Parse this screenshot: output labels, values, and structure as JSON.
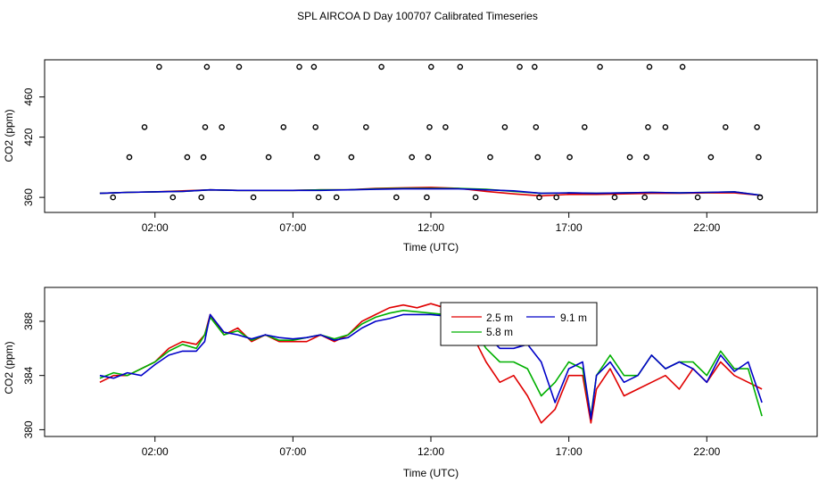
{
  "title": "SPL AIRCOA D  Day 100707  Calibrated Timeseries",
  "chart_data": [
    {
      "type": "scatter+line",
      "xlabel": "Time (UTC)",
      "ylabel": "CO2 (ppm)",
      "x_tick_labels": [
        "02:00",
        "07:00",
        "12:00",
        "17:00",
        "22:00"
      ],
      "x_ticks_hours": [
        2,
        7,
        12,
        17,
        22
      ],
      "x_range_hours": [
        -2.0,
        26.0
      ],
      "y_ticks": [
        360,
        420,
        460
      ],
      "y_tick_labels": [
        "360",
        "420",
        "460"
      ],
      "y_range": [
        345,
        497
      ],
      "calibration_points": [
        {
          "x": 0.48,
          "y": 360
        },
        {
          "x": 1.07,
          "y": 400
        },
        {
          "x": 1.62,
          "y": 430
        },
        {
          "x": 2.15,
          "y": 490
        },
        {
          "x": 2.65,
          "y": 360
        },
        {
          "x": 3.17,
          "y": 400
        },
        {
          "x": 3.68,
          "y": 360
        },
        {
          "x": 3.76,
          "y": 400
        },
        {
          "x": 3.82,
          "y": 430
        },
        {
          "x": 3.88,
          "y": 490
        },
        {
          "x": 4.42,
          "y": 430
        },
        {
          "x": 5.05,
          "y": 490
        },
        {
          "x": 5.57,
          "y": 360
        },
        {
          "x": 6.12,
          "y": 400
        },
        {
          "x": 6.66,
          "y": 430
        },
        {
          "x": 7.23,
          "y": 490
        },
        {
          "x": 7.76,
          "y": 490
        },
        {
          "x": 7.82,
          "y": 430
        },
        {
          "x": 7.87,
          "y": 400
        },
        {
          "x": 7.93,
          "y": 360
        },
        {
          "x": 8.58,
          "y": 360
        },
        {
          "x": 9.12,
          "y": 400
        },
        {
          "x": 9.65,
          "y": 430
        },
        {
          "x": 10.21,
          "y": 490
        },
        {
          "x": 10.75,
          "y": 360
        },
        {
          "x": 11.31,
          "y": 400
        },
        {
          "x": 11.85,
          "y": 360
        },
        {
          "x": 11.9,
          "y": 400
        },
        {
          "x": 11.95,
          "y": 430
        },
        {
          "x": 12.01,
          "y": 490
        },
        {
          "x": 12.53,
          "y": 430
        },
        {
          "x": 13.06,
          "y": 490
        },
        {
          "x": 13.62,
          "y": 360
        },
        {
          "x": 14.15,
          "y": 400
        },
        {
          "x": 14.68,
          "y": 430
        },
        {
          "x": 15.22,
          "y": 490
        },
        {
          "x": 15.76,
          "y": 490
        },
        {
          "x": 15.81,
          "y": 430
        },
        {
          "x": 15.87,
          "y": 400
        },
        {
          "x": 15.93,
          "y": 360
        },
        {
          "x": 16.55,
          "y": 360
        },
        {
          "x": 17.03,
          "y": 400
        },
        {
          "x": 17.57,
          "y": 430
        },
        {
          "x": 18.13,
          "y": 490
        },
        {
          "x": 18.66,
          "y": 360
        },
        {
          "x": 19.21,
          "y": 400
        },
        {
          "x": 19.75,
          "y": 360
        },
        {
          "x": 19.81,
          "y": 400
        },
        {
          "x": 19.87,
          "y": 430
        },
        {
          "x": 19.92,
          "y": 490
        },
        {
          "x": 20.5,
          "y": 430
        },
        {
          "x": 21.12,
          "y": 490
        },
        {
          "x": 21.67,
          "y": 360
        },
        {
          "x": 22.15,
          "y": 400
        },
        {
          "x": 22.68,
          "y": 430
        },
        {
          "x": 23.82,
          "y": 430
        },
        {
          "x": 23.88,
          "y": 400
        },
        {
          "x": 23.93,
          "y": 360
        }
      ],
      "lines": [
        {
          "color": "#e00000",
          "x": [
            0.0,
            1.0,
            2.0,
            3.0,
            4.0,
            5.0,
            6.0,
            7.0,
            8.0,
            9.0,
            10.0,
            11.0,
            12.0,
            13.0,
            14.0,
            15.0,
            16.0,
            17.0,
            18.0,
            19.0,
            20.0,
            21.0,
            22.0,
            23.0,
            24.0
          ],
          "y": [
            364,
            365,
            365.5,
            366.5,
            367.5,
            367,
            367,
            367,
            367.5,
            367.5,
            369,
            369.5,
            370,
            369,
            366,
            363.5,
            361.5,
            363,
            363,
            363.5,
            364,
            364,
            364.5,
            364.5,
            362
          ]
        },
        {
          "color": "#00b000",
          "x": [
            0.0,
            1.0,
            2.0,
            3.0,
            4.0,
            5.0,
            6.0,
            7.0,
            8.0,
            9.0,
            10.0,
            11.0,
            12.0,
            13.0,
            14.0,
            15.0,
            16.0,
            17.0,
            18.0,
            19.0,
            20.0,
            21.0,
            22.0,
            23.0,
            24.0
          ],
          "y": [
            364,
            365,
            365.5,
            366,
            367.5,
            367,
            367,
            367,
            367.5,
            367.5,
            368.5,
            369,
            369,
            369,
            368,
            366,
            364,
            364.5,
            364,
            364.5,
            365,
            364.5,
            365,
            365.5,
            362
          ]
        },
        {
          "color": "#0000c8",
          "x": [
            0.0,
            1.0,
            2.0,
            3.0,
            4.0,
            5.0,
            6.0,
            7.0,
            8.0,
            9.0,
            10.0,
            11.0,
            12.0,
            13.0,
            14.0,
            15.0,
            16.0,
            17.0,
            18.0,
            19.0,
            20.0,
            21.0,
            22.0,
            23.0,
            24.0
          ],
          "y": [
            364,
            365,
            365.5,
            366,
            367.5,
            367,
            367,
            367,
            367,
            367.5,
            368,
            368.5,
            368.5,
            368.5,
            367.5,
            366.5,
            364,
            364.5,
            364,
            364.5,
            365,
            364.5,
            365,
            365.5,
            362
          ]
        }
      ]
    },
    {
      "type": "line",
      "xlabel": "Time (UTC)",
      "ylabel": "CO2 (ppm)",
      "x_tick_labels": [
        "02:00",
        "07:00",
        "12:00",
        "17:00",
        "22:00"
      ],
      "x_ticks_hours": [
        2,
        7,
        12,
        17,
        22
      ],
      "x_range_hours": [
        -2.0,
        26.0
      ],
      "y_ticks": [
        380,
        384,
        388
      ],
      "y_tick_labels": [
        "380",
        "384",
        "388"
      ],
      "y_range": [
        379.5,
        390.5
      ],
      "legend": {
        "placement": "top-right",
        "entries": [
          {
            "label": "2.5 m",
            "color": "#e00000"
          },
          {
            "label": "9.1 m",
            "color": "#0000c8"
          },
          {
            "label": "5.8 m",
            "color": "#00b000"
          }
        ]
      },
      "series": [
        {
          "name": "2.5 m",
          "color": "#e00000",
          "x": [
            0.0,
            0.5,
            1.0,
            1.5,
            2.0,
            2.5,
            3.0,
            3.5,
            3.8,
            4.0,
            4.5,
            5.0,
            5.5,
            6.0,
            6.5,
            7.0,
            7.5,
            8.0,
            8.5,
            9.0,
            9.5,
            10.0,
            10.5,
            11.0,
            11.5,
            12.0,
            12.5,
            13.0,
            13.5,
            14.0,
            14.5,
            15.0,
            15.5,
            16.0,
            16.5,
            17.0,
            17.5,
            17.8,
            18.0,
            18.5,
            19.0,
            19.5,
            20.0,
            20.5,
            21.0,
            21.5,
            22.0,
            22.5,
            23.0,
            23.5,
            24.0
          ],
          "y": [
            383.5,
            384.0,
            384.0,
            384.5,
            385.0,
            386.0,
            386.5,
            386.3,
            387.0,
            388.5,
            387.0,
            387.5,
            386.5,
            387.0,
            386.5,
            386.5,
            386.5,
            387.0,
            386.5,
            387.0,
            388.0,
            388.5,
            389.0,
            389.2,
            389.0,
            389.3,
            389.0,
            388.0,
            387.0,
            385.0,
            383.5,
            384.0,
            382.5,
            380.5,
            381.5,
            384.0,
            384.0,
            380.5,
            383.0,
            384.5,
            382.5,
            383.0,
            383.5,
            384.0,
            383.0,
            384.5,
            383.5,
            385.0,
            384.0,
            383.5,
            383.0
          ]
        },
        {
          "name": "5.8 m",
          "color": "#00b000",
          "x": [
            0.0,
            0.5,
            1.0,
            1.5,
            2.0,
            2.5,
            3.0,
            3.5,
            3.8,
            4.0,
            4.5,
            5.0,
            5.5,
            6.0,
            6.5,
            7.0,
            7.5,
            8.0,
            8.5,
            9.0,
            9.5,
            10.0,
            10.5,
            11.0,
            11.5,
            12.0,
            12.5,
            13.0,
            13.5,
            14.0,
            14.5,
            15.0,
            15.5,
            16.0,
            16.5,
            17.0,
            17.5,
            17.8,
            18.0,
            18.5,
            19.0,
            19.5,
            20.0,
            20.5,
            21.0,
            21.5,
            22.0,
            22.5,
            23.0,
            23.5,
            24.0
          ],
          "y": [
            383.8,
            384.2,
            384.0,
            384.5,
            385.0,
            385.8,
            386.3,
            386.0,
            387.0,
            388.3,
            387.0,
            387.3,
            386.6,
            387.0,
            386.6,
            386.6,
            386.8,
            387.0,
            386.7,
            387.0,
            387.8,
            388.3,
            388.6,
            388.8,
            388.7,
            388.6,
            388.5,
            388.2,
            387.5,
            386.0,
            385.0,
            385.0,
            384.5,
            382.5,
            383.5,
            385.0,
            384.5,
            381.0,
            384.0,
            385.5,
            384.0,
            384.0,
            385.5,
            384.5,
            385.0,
            385.0,
            384.0,
            385.8,
            384.5,
            384.5,
            381.0
          ]
        },
        {
          "name": "9.1 m",
          "color": "#0000c8",
          "x": [
            0.0,
            0.5,
            1.0,
            1.5,
            2.0,
            2.5,
            3.0,
            3.5,
            3.8,
            4.0,
            4.5,
            5.0,
            5.5,
            6.0,
            6.5,
            7.0,
            7.5,
            8.0,
            8.5,
            9.0,
            9.5,
            10.0,
            10.5,
            11.0,
            11.5,
            12.0,
            12.5,
            13.0,
            13.5,
            14.0,
            14.5,
            15.0,
            15.5,
            16.0,
            16.5,
            17.0,
            17.5,
            17.8,
            18.0,
            18.5,
            19.0,
            19.5,
            20.0,
            20.5,
            21.0,
            21.5,
            22.0,
            22.5,
            23.0,
            23.5,
            24.0
          ],
          "y": [
            384.0,
            383.8,
            384.2,
            384.0,
            384.8,
            385.5,
            385.8,
            385.8,
            386.5,
            388.5,
            387.2,
            387.0,
            386.7,
            387.0,
            386.8,
            386.7,
            386.8,
            387.0,
            386.6,
            386.8,
            387.5,
            388.0,
            388.2,
            388.5,
            388.5,
            388.5,
            388.4,
            388.0,
            387.8,
            387.0,
            386.0,
            386.0,
            386.3,
            385.0,
            382.0,
            384.5,
            385.0,
            380.8,
            384.0,
            385.0,
            383.5,
            384.0,
            385.5,
            384.5,
            385.0,
            384.5,
            383.5,
            385.5,
            384.3,
            385.0,
            382.0
          ]
        }
      ]
    }
  ]
}
